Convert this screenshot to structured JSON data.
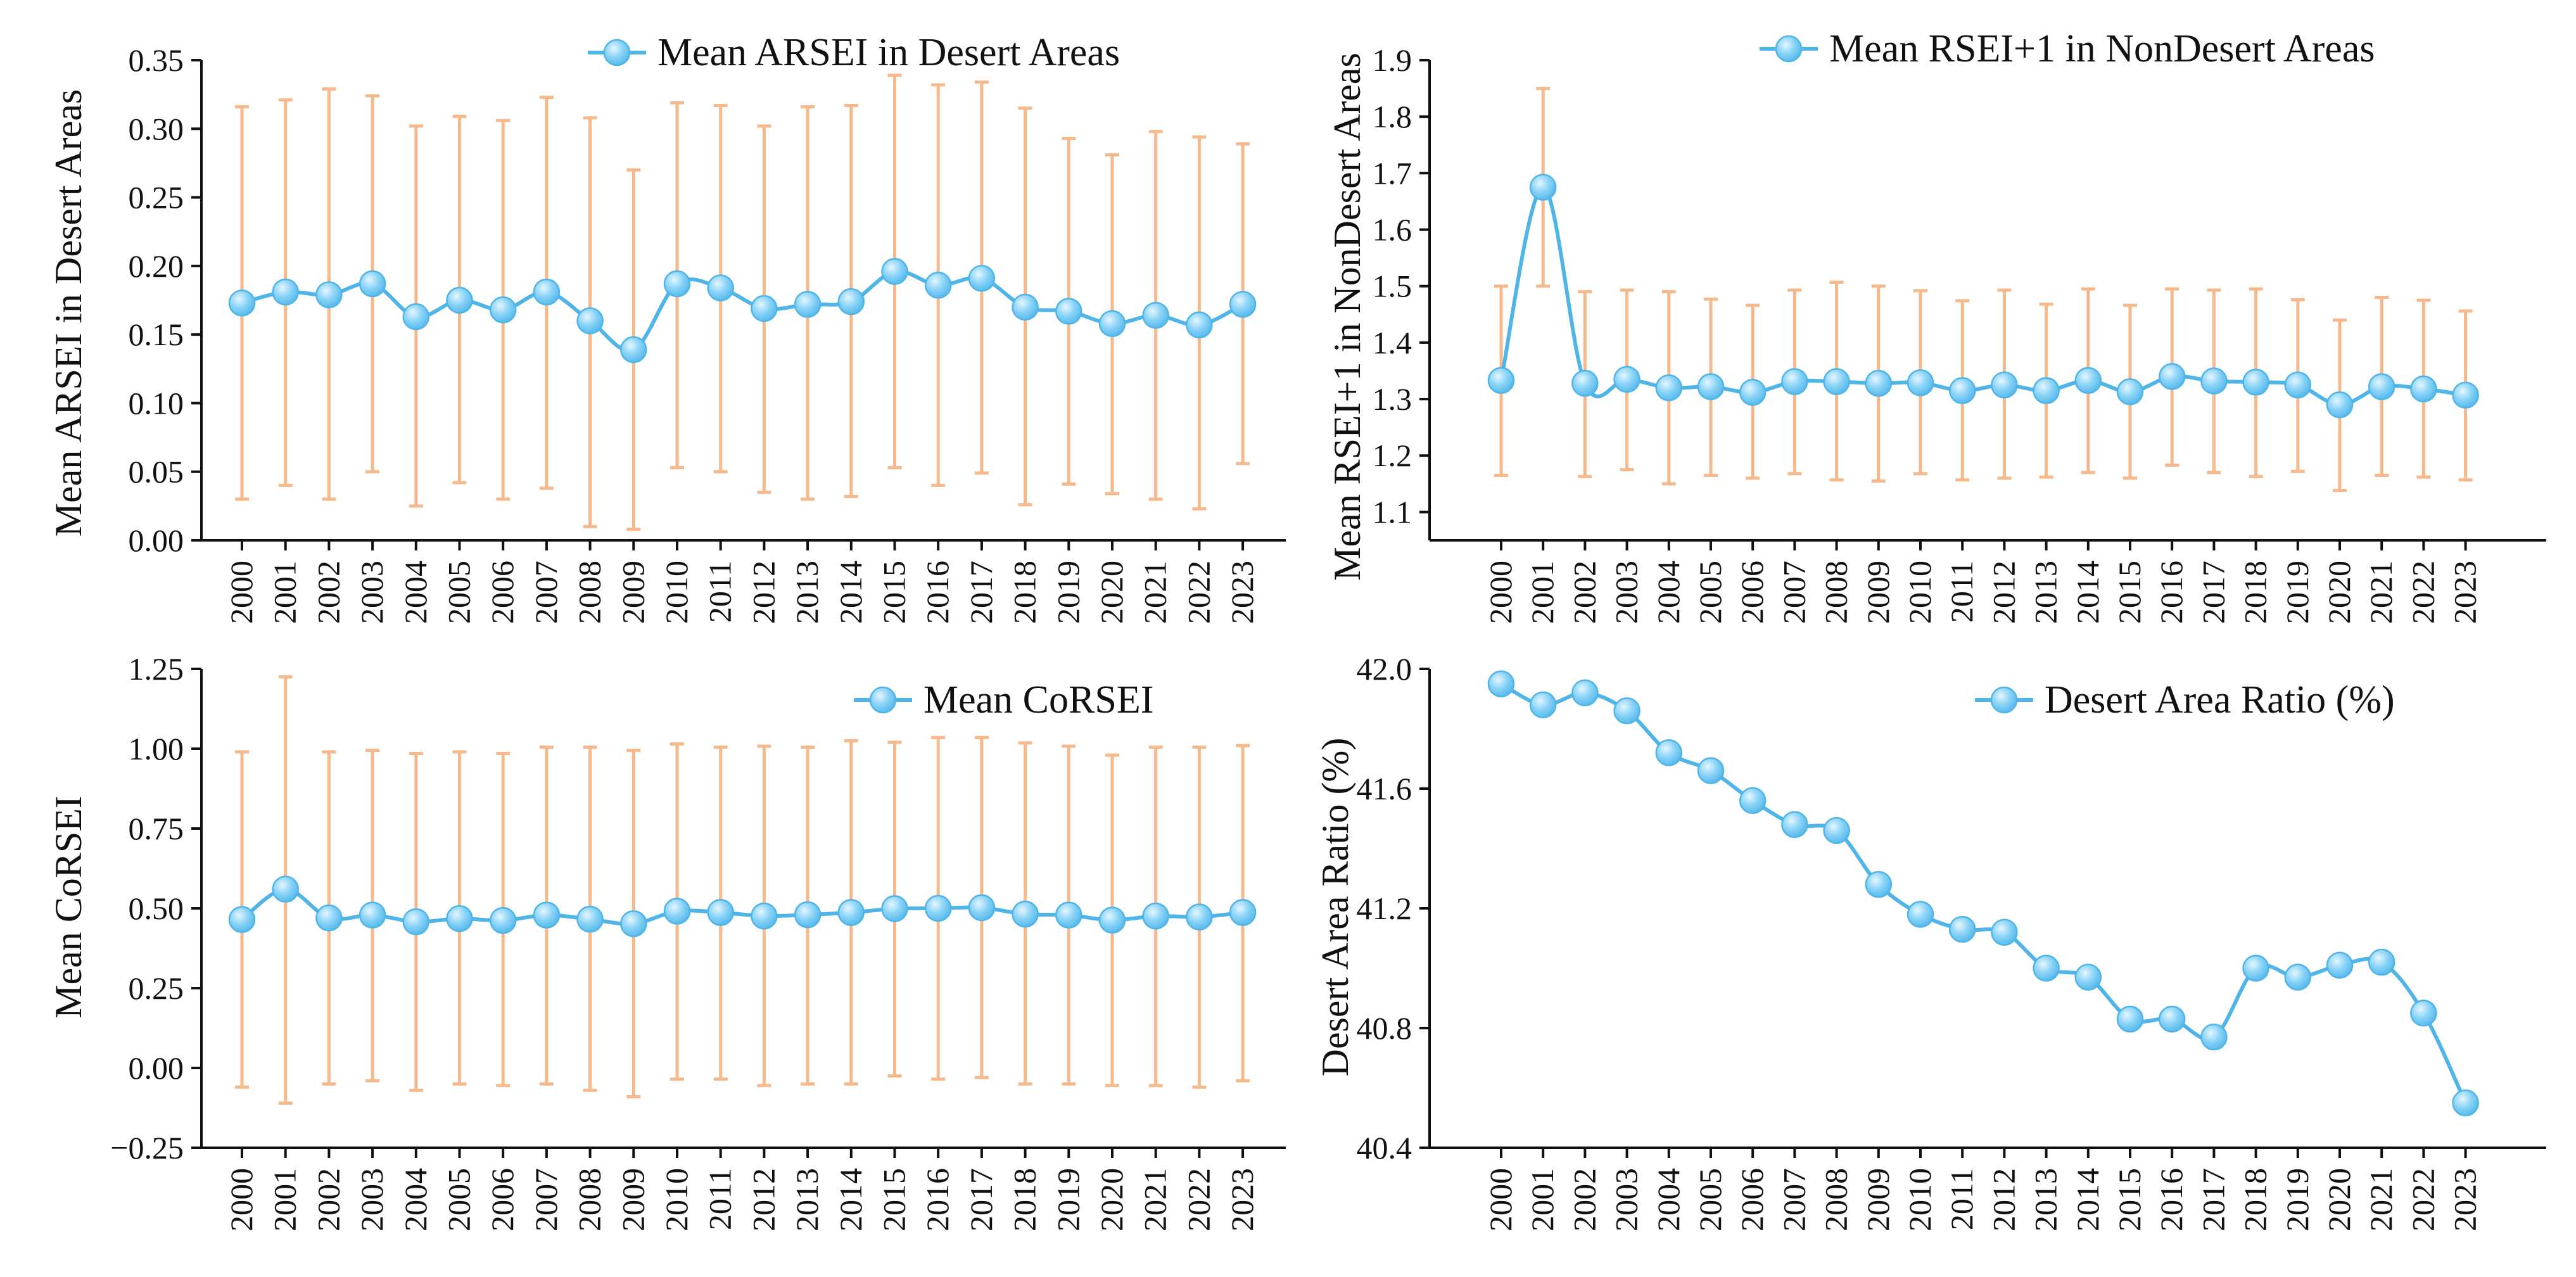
{
  "years": [
    "2000",
    "2001",
    "2002",
    "2003",
    "2004",
    "2005",
    "2006",
    "2007",
    "2008",
    "2009",
    "2010",
    "2011",
    "2012",
    "2013",
    "2014",
    "2015",
    "2016",
    "2017",
    "2018",
    "2019",
    "2020",
    "2021",
    "2022",
    "2023"
  ],
  "colors": {
    "line": "#4fb5e8",
    "marker_fill": "#86d2f7",
    "marker_highlight": "#e4f6ff",
    "error_bar": "#f5b98c",
    "axis": "#111111"
  },
  "chart_data": [
    {
      "id": "arsei",
      "type": "line",
      "title": "",
      "xlabel": "",
      "ylabel": "Mean ARSEI in Desert Areas",
      "legend": "Mean ARSEI in Desert Areas",
      "legend_position": "top-right",
      "ylim": [
        0,
        0.35
      ],
      "yticks": [
        0,
        0.05,
        0.1,
        0.15,
        0.2,
        0.25,
        0.3,
        0.35
      ],
      "ytick_labels": [
        "0.00",
        "0.05",
        "0.10",
        "0.15",
        "0.20",
        "0.25",
        "0.30",
        "0.35"
      ],
      "values": [
        0.173,
        0.181,
        0.179,
        0.187,
        0.163,
        0.175,
        0.168,
        0.181,
        0.16,
        0.139,
        0.187,
        0.184,
        0.169,
        0.172,
        0.174,
        0.196,
        0.186,
        0.191,
        0.17,
        0.167,
        0.158,
        0.164,
        0.157,
        0.172
      ],
      "err_low": [
        0.03,
        0.04,
        0.03,
        0.05,
        0.025,
        0.042,
        0.03,
        0.038,
        0.01,
        0.008,
        0.053,
        0.05,
        0.035,
        0.03,
        0.032,
        0.053,
        0.04,
        0.049,
        0.026,
        0.041,
        0.034,
        0.03,
        0.023,
        0.056
      ],
      "err_high": [
        0.316,
        0.321,
        0.329,
        0.324,
        0.302,
        0.309,
        0.306,
        0.323,
        0.308,
        0.27,
        0.319,
        0.317,
        0.302,
        0.316,
        0.317,
        0.339,
        0.332,
        0.334,
        0.315,
        0.293,
        0.281,
        0.298,
        0.294,
        0.289
      ],
      "grid": false
    },
    {
      "id": "rsei",
      "type": "line",
      "title": "",
      "xlabel": "",
      "ylabel": "Mean RSEI+1 in NonDesert Areas",
      "legend": "Mean RSEI+1 in NonDesert Areas",
      "legend_position": "top-right",
      "ylim": [
        1.05,
        1.9
      ],
      "yticks": [
        1.1,
        1.2,
        1.3,
        1.4,
        1.5,
        1.6,
        1.7,
        1.8,
        1.9
      ],
      "ytick_labels": [
        "1.1",
        "1.2",
        "1.3",
        "1.4",
        "1.5",
        "1.6",
        "1.7",
        "1.8",
        "1.9"
      ],
      "values": [
        1.333,
        1.675,
        1.328,
        1.335,
        1.32,
        1.322,
        1.312,
        1.331,
        1.331,
        1.328,
        1.329,
        1.315,
        1.325,
        1.315,
        1.333,
        1.313,
        1.34,
        1.332,
        1.33,
        1.325,
        1.29,
        1.322,
        1.318,
        1.307
      ],
      "err_low": [
        1.165,
        1.5,
        1.163,
        1.175,
        1.15,
        1.165,
        1.16,
        1.168,
        1.157,
        1.155,
        1.168,
        1.157,
        1.16,
        1.162,
        1.17,
        1.16,
        1.183,
        1.17,
        1.163,
        1.172,
        1.138,
        1.165,
        1.162,
        1.157
      ],
      "err_high": [
        1.5,
        1.85,
        1.49,
        1.493,
        1.49,
        1.477,
        1.466,
        1.493,
        1.507,
        1.5,
        1.492,
        1.474,
        1.493,
        1.468,
        1.495,
        1.466,
        1.495,
        1.493,
        1.495,
        1.476,
        1.44,
        1.48,
        1.475,
        1.456
      ],
      "grid": false
    },
    {
      "id": "corsei",
      "type": "line",
      "title": "",
      "xlabel": "",
      "ylabel": "Mean CoRSEI",
      "legend": "Mean CoRSEI",
      "legend_position": "top-right",
      "ylim": [
        -0.25,
        1.25
      ],
      "yticks": [
        -0.25,
        0,
        0.25,
        0.5,
        0.75,
        1.0,
        1.25
      ],
      "ytick_labels": [
        "−0.25",
        "0.00",
        "0.25",
        "0.50",
        "0.75",
        "1.00",
        "1.25"
      ],
      "values": [
        0.465,
        0.56,
        0.47,
        0.479,
        0.458,
        0.468,
        0.462,
        0.479,
        0.466,
        0.452,
        0.491,
        0.487,
        0.476,
        0.48,
        0.487,
        0.499,
        0.5,
        0.502,
        0.482,
        0.479,
        0.463,
        0.476,
        0.473,
        0.487
      ],
      "err_low": [
        -0.06,
        -0.11,
        -0.05,
        -0.04,
        -0.07,
        -0.05,
        -0.055,
        -0.05,
        -0.07,
        -0.09,
        -0.035,
        -0.035,
        -0.055,
        -0.05,
        -0.05,
        -0.025,
        -0.035,
        -0.03,
        -0.05,
        -0.05,
        -0.055,
        -0.055,
        -0.06,
        -0.04
      ],
      "err_high": [
        0.99,
        1.225,
        0.99,
        0.995,
        0.985,
        0.99,
        0.985,
        1.005,
        1.005,
        0.995,
        1.015,
        1.005,
        1.008,
        1.005,
        1.025,
        1.02,
        1.035,
        1.035,
        1.018,
        1.008,
        0.98,
        1.005,
        1.005,
        1.01
      ],
      "grid": false
    },
    {
      "id": "ratio",
      "type": "line",
      "title": "",
      "xlabel": "",
      "ylabel": "Desert Area Ratio (%)",
      "legend": "Desert Area Ratio (%)",
      "legend_position": "top-right",
      "ylim": [
        40.4,
        42.0
      ],
      "yticks": [
        40.4,
        40.8,
        41.2,
        41.6,
        42.0
      ],
      "ytick_labels": [
        "40.4",
        "40.8",
        "41.2",
        "41.6",
        "42.0"
      ],
      "values": [
        41.95,
        41.88,
        41.92,
        41.86,
        41.72,
        41.66,
        41.56,
        41.48,
        41.46,
        41.28,
        41.18,
        41.13,
        41.12,
        41.0,
        40.97,
        40.83,
        40.83,
        40.77,
        41.0,
        40.97,
        41.01,
        41.02,
        40.85,
        40.55
      ],
      "grid": false
    }
  ]
}
